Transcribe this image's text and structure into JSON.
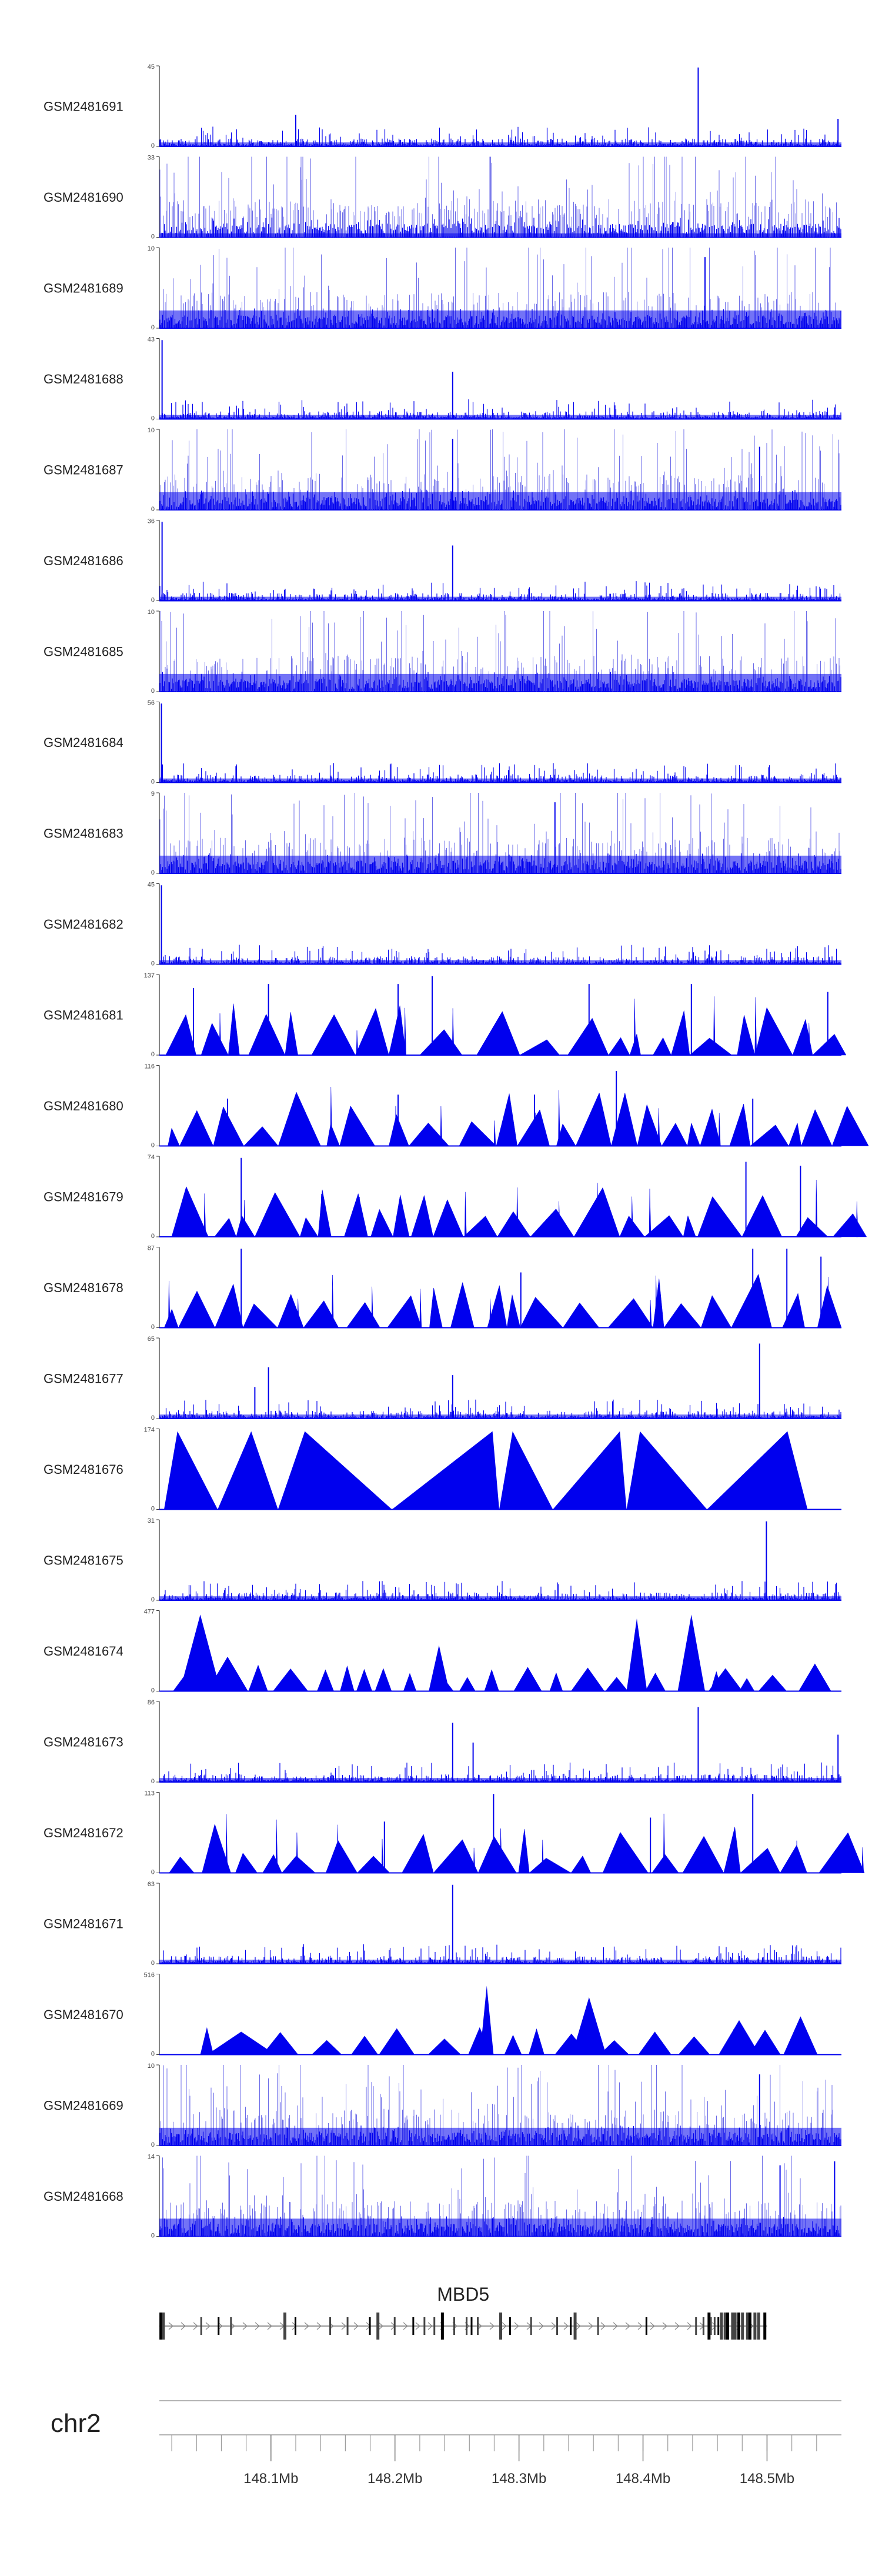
{
  "chart_data": {
    "type": "area",
    "genome": "hg19",
    "chromosome": "chr2",
    "region_mb": [
      148.01,
      148.56
    ],
    "track_color": "#0000EE",
    "tracks": [
      {
        "name": "GSM2481691",
        "max": 45,
        "min": 0,
        "style": "dense",
        "peaks": [
          [
            0.79,
            1.0
          ],
          [
            0.2,
            0.4
          ],
          [
            0.995,
            0.35
          ]
        ]
      },
      {
        "name": "GSM2481690",
        "max": 33,
        "min": 0,
        "style": "dense",
        "peaks": []
      },
      {
        "name": "GSM2481689",
        "max": 10,
        "min": 0,
        "style": "dense",
        "peaks": [
          [
            0.8,
            0.9
          ]
        ]
      },
      {
        "name": "GSM2481688",
        "max": 43,
        "min": 0,
        "style": "dense",
        "peaks": [
          [
            0.004,
            1.0
          ],
          [
            0.43,
            0.6
          ]
        ]
      },
      {
        "name": "GSM2481687",
        "max": 10,
        "min": 0,
        "style": "dense",
        "peaks": [
          [
            0.43,
            0.9
          ],
          [
            0.88,
            0.8
          ]
        ]
      },
      {
        "name": "GSM2481686",
        "max": 36,
        "min": 0,
        "style": "dense",
        "peaks": [
          [
            0.004,
            1.0
          ],
          [
            0.43,
            0.7
          ]
        ]
      },
      {
        "name": "GSM2481685",
        "max": 10,
        "min": 0,
        "style": "dense",
        "peaks": []
      },
      {
        "name": "GSM2481684",
        "max": 56,
        "min": 0,
        "style": "dense",
        "peaks": [
          [
            0.003,
            1.0
          ]
        ]
      },
      {
        "name": "GSM2481683",
        "max": 9,
        "min": 0,
        "style": "dense",
        "peaks": [
          [
            0.58,
            0.9
          ]
        ]
      },
      {
        "name": "GSM2481682",
        "max": 45,
        "min": 0,
        "style": "dense",
        "peaks": [
          [
            0.003,
            1.0
          ]
        ]
      },
      {
        "name": "GSM2481681",
        "max": 137,
        "min": 0,
        "style": "triangles",
        "peaks": [
          [
            0.05,
            0.85
          ],
          [
            0.16,
            0.9
          ],
          [
            0.35,
            0.9
          ],
          [
            0.4,
            1.0
          ],
          [
            0.63,
            0.9
          ],
          [
            0.78,
            0.9
          ],
          [
            0.98,
            0.8
          ]
        ]
      },
      {
        "name": "GSM2481680",
        "max": 116,
        "min": 0,
        "style": "triangles",
        "peaks": [
          [
            0.1,
            0.6
          ],
          [
            0.35,
            0.65
          ],
          [
            0.55,
            0.65
          ],
          [
            0.67,
            0.95
          ],
          [
            0.87,
            0.6
          ]
        ]
      },
      {
        "name": "GSM2481679",
        "max": 74,
        "min": 0,
        "style": "triangles",
        "peaks": [
          [
            0.12,
            1.0
          ],
          [
            0.86,
            0.95
          ],
          [
            0.94,
            0.9
          ]
        ]
      },
      {
        "name": "GSM2481678",
        "max": 87,
        "min": 0,
        "style": "triangles",
        "peaks": [
          [
            0.12,
            1.0
          ],
          [
            0.53,
            0.7
          ],
          [
            0.87,
            1.0
          ],
          [
            0.92,
            1.0
          ],
          [
            0.97,
            0.9
          ]
        ]
      },
      {
        "name": "GSM2481677",
        "max": 65,
        "min": 0,
        "style": "dense",
        "peaks": [
          [
            0.14,
            0.4
          ],
          [
            0.16,
            0.65
          ],
          [
            0.43,
            0.55
          ],
          [
            0.88,
            0.95
          ]
        ]
      },
      {
        "name": "GSM2481676",
        "max": 174,
        "min": 0,
        "style": "big",
        "peaks": []
      },
      {
        "name": "GSM2481675",
        "max": 31,
        "min": 0,
        "style": "dense",
        "peaks": [
          [
            0.89,
            1.0
          ]
        ]
      },
      {
        "name": "GSM2481674",
        "max": 477,
        "min": 0,
        "style": "sparse",
        "peaks": []
      },
      {
        "name": "GSM2481673",
        "max": 86,
        "min": 0,
        "style": "dense",
        "peaks": [
          [
            0.43,
            0.75
          ],
          [
            0.46,
            0.5
          ],
          [
            0.79,
            0.95
          ],
          [
            0.995,
            0.6
          ]
        ]
      },
      {
        "name": "GSM2481672",
        "max": 113,
        "min": 0,
        "style": "triangles",
        "peaks": [
          [
            0.33,
            0.65
          ],
          [
            0.49,
            1.0
          ],
          [
            0.72,
            0.7
          ],
          [
            0.87,
            1.0
          ]
        ]
      },
      {
        "name": "GSM2481671",
        "max": 63,
        "min": 0,
        "style": "dense",
        "peaks": [
          [
            0.43,
            1.0
          ]
        ]
      },
      {
        "name": "GSM2481670",
        "max": 516,
        "min": 0,
        "style": "sparse",
        "peaks": []
      },
      {
        "name": "GSM2481669",
        "max": 10,
        "min": 0,
        "style": "dense",
        "peaks": [
          [
            0.88,
            0.9
          ]
        ]
      },
      {
        "name": "GSM2481668",
        "max": 14,
        "min": 0,
        "style": "dense",
        "peaks": [
          [
            0.91,
            0.9
          ],
          [
            0.99,
            0.95
          ]
        ]
      }
    ],
    "gene": {
      "name": "MBD5",
      "start": 148.01,
      "end": 148.5,
      "exons": [
        148.011,
        148.013,
        148.044,
        148.058,
        148.068,
        148.111,
        148.12,
        148.148,
        148.162,
        148.18,
        148.186,
        148.2,
        148.215,
        148.224,
        148.232,
        148.238,
        148.248,
        148.258,
        148.262,
        148.267,
        148.285,
        148.293,
        148.31,
        148.331,
        148.342,
        148.345,
        148.364,
        148.403,
        148.443,
        148.449,
        148.453,
        148.455,
        148.458,
        148.461,
        148.463,
        148.466,
        148.468,
        148.472,
        148.474,
        148.477,
        148.48,
        148.484,
        148.486,
        148.49,
        148.493,
        148.498
      ]
    },
    "axis": {
      "label": "chr2",
      "ticks": [
        148.1,
        148.2,
        148.3,
        148.4,
        148.5
      ],
      "tick_labels": [
        "148.1Mb",
        "148.2Mb",
        "148.3Mb",
        "148.4Mb",
        "148.5Mb"
      ]
    }
  }
}
